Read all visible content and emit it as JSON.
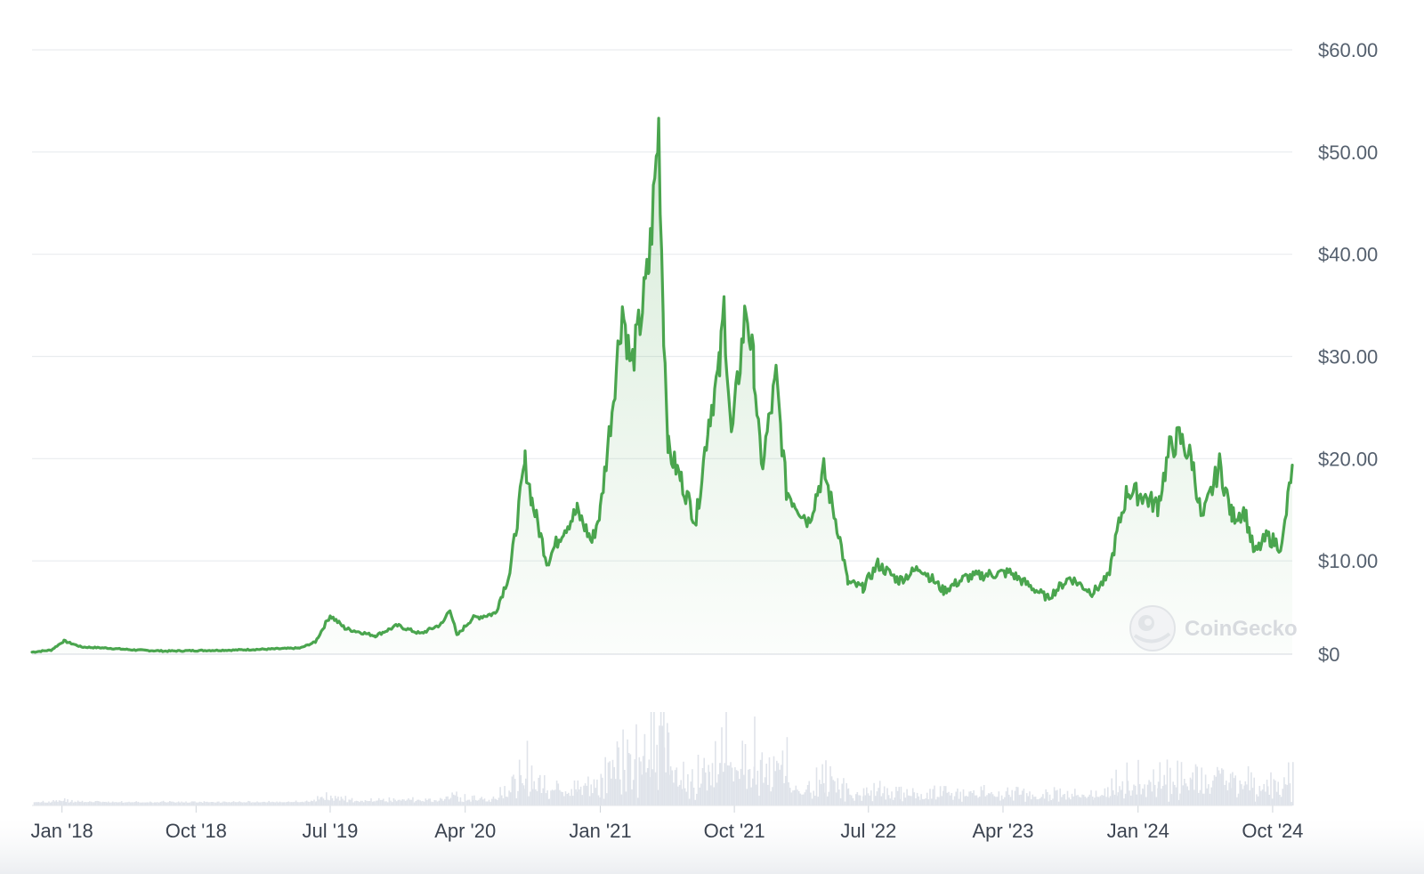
{
  "chart_data": {
    "type": "line",
    "watermark": "CoinGecko",
    "colors": {
      "line": "#4aa54e",
      "area": "#4aa54e",
      "volume": "#dfe3ea",
      "grid": "#e9ecef",
      "axis_text": "#55606e"
    },
    "y_axis": {
      "ticks": [
        "$0",
        "$10.00",
        "$20.00",
        "$30.00",
        "$40.00",
        "$50.00",
        "$60.00"
      ],
      "range": [
        0,
        60
      ],
      "position": "right",
      "grid": true
    },
    "x_axis": {
      "ticks": [
        "Jan '18",
        "Oct '18",
        "Jul '19",
        "Apr '20",
        "Jan '21",
        "Oct '21",
        "Jul '22",
        "Apr '23",
        "Jan '24",
        "Oct '24"
      ],
      "range": [
        "2017-11-01",
        "2024-11-10"
      ]
    },
    "series": [
      {
        "points": [
          [
            "2017-11-01",
            0.2
          ],
          [
            "2017-12-10",
            0.4
          ],
          [
            "2018-01-05",
            1.3
          ],
          [
            "2018-02-10",
            0.7
          ],
          [
            "2018-04-01",
            0.6
          ],
          [
            "2018-06-01",
            0.4
          ],
          [
            "2018-08-01",
            0.3
          ],
          [
            "2018-10-01",
            0.35
          ],
          [
            "2018-12-15",
            0.4
          ],
          [
            "2019-03-01",
            0.5
          ],
          [
            "2019-05-01",
            0.6
          ],
          [
            "2019-06-01",
            1.2
          ],
          [
            "2019-07-01",
            3.8
          ],
          [
            "2019-08-01",
            2.5
          ],
          [
            "2019-10-01",
            1.8
          ],
          [
            "2019-11-15",
            2.8
          ],
          [
            "2020-01-01",
            2.0
          ],
          [
            "2020-02-15",
            3.0
          ],
          [
            "2020-03-01",
            4.5
          ],
          [
            "2020-03-15",
            1.8
          ],
          [
            "2020-04-15",
            3.5
          ],
          [
            "2020-06-01",
            4.0
          ],
          [
            "2020-07-01",
            8.0
          ],
          [
            "2020-08-01",
            18.8
          ],
          [
            "2020-08-15",
            15.0
          ],
          [
            "2020-09-15",
            9.0
          ],
          [
            "2020-10-15",
            12.0
          ],
          [
            "2020-11-15",
            14.0
          ],
          [
            "2020-12-15",
            11.0
          ],
          [
            "2021-01-01",
            14.0
          ],
          [
            "2021-01-25",
            24.0
          ],
          [
            "2021-02-15",
            34.0
          ],
          [
            "2021-03-05",
            28.0
          ],
          [
            "2021-03-25",
            33.0
          ],
          [
            "2021-04-10",
            38.0
          ],
          [
            "2021-04-30",
            51.5
          ],
          [
            "2021-05-10",
            32.0
          ],
          [
            "2021-05-20",
            20.0
          ],
          [
            "2021-06-15",
            17.0
          ],
          [
            "2021-07-15",
            13.0
          ],
          [
            "2021-08-10",
            23.0
          ],
          [
            "2021-09-01",
            28.0
          ],
          [
            "2021-09-10",
            34.0
          ],
          [
            "2021-09-25",
            21.0
          ],
          [
            "2021-10-25",
            34.0
          ],
          [
            "2021-11-10",
            28.0
          ],
          [
            "2021-11-25",
            18.0
          ],
          [
            "2021-12-25",
            27.0
          ],
          [
            "2022-01-15",
            16.0
          ],
          [
            "2022-03-01",
            13.0
          ],
          [
            "2022-04-01",
            18.0
          ],
          [
            "2022-05-01",
            12.0
          ],
          [
            "2022-05-20",
            7.0
          ],
          [
            "2022-06-20",
            6.5
          ],
          [
            "2022-07-20",
            8.8
          ],
          [
            "2022-09-01",
            7.2
          ],
          [
            "2022-10-15",
            8.5
          ],
          [
            "2022-12-01",
            6.2
          ],
          [
            "2023-01-15",
            7.5
          ],
          [
            "2023-03-01",
            7.8
          ],
          [
            "2023-04-15",
            8.0
          ],
          [
            "2023-05-15",
            7.0
          ],
          [
            "2023-07-01",
            5.5
          ],
          [
            "2023-08-15",
            7.5
          ],
          [
            "2023-09-30",
            6.0
          ],
          [
            "2023-11-01",
            7.5
          ],
          [
            "2023-11-20",
            12.0
          ],
          [
            "2023-12-10",
            16.0
          ],
          [
            "2024-01-10",
            15.5
          ],
          [
            "2024-02-10",
            14.5
          ],
          [
            "2024-03-05",
            20.0
          ],
          [
            "2024-03-25",
            21.2
          ],
          [
            "2024-04-20",
            19.0
          ],
          [
            "2024-05-10",
            13.0
          ],
          [
            "2024-06-15",
            18.5
          ],
          [
            "2024-07-10",
            13.5
          ],
          [
            "2024-08-05",
            14.0
          ],
          [
            "2024-08-25",
            9.8
          ],
          [
            "2024-09-20",
            11.5
          ],
          [
            "2024-10-20",
            10.5
          ],
          [
            "2024-11-10",
            18.5
          ]
        ]
      }
    ]
  }
}
